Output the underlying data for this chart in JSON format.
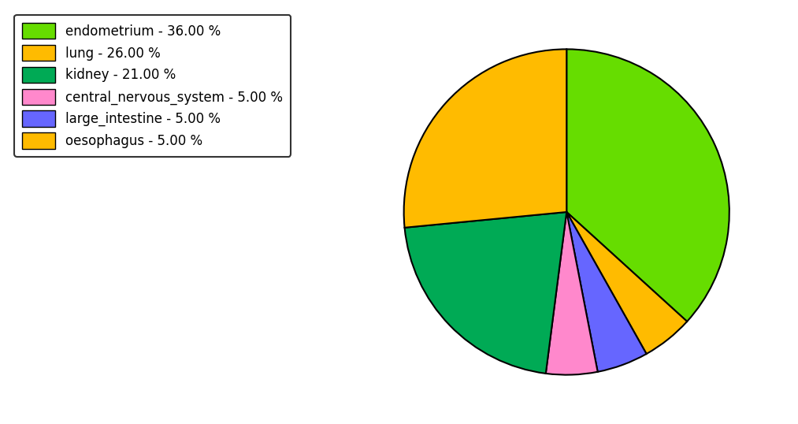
{
  "labels": [
    "endometrium",
    "lung",
    "kidney",
    "central_nervous_system",
    "large_intestine",
    "oesophagus"
  ],
  "values": [
    36.0,
    26.0,
    21.0,
    5.0,
    5.0,
    5.0
  ],
  "colors": [
    "#66dd00",
    "#ffbb00",
    "#00aa55",
    "#ff88cc",
    "#6666ff",
    "#ffbb00"
  ],
  "legend_labels": [
    "endometrium - 36.00 %",
    "lung - 26.00 %",
    "kidney - 21.00 %",
    "central_nervous_system - 5.00 %",
    "large_intestine - 5.00 %",
    "oesophagus - 5.00 %"
  ],
  "plot_order": [
    "endometrium",
    "oesophagus",
    "large_intestine",
    "central_nervous_system",
    "kidney",
    "lung"
  ],
  "startangle": 90,
  "figsize": [
    10.13,
    5.38
  ],
  "dpi": 100
}
